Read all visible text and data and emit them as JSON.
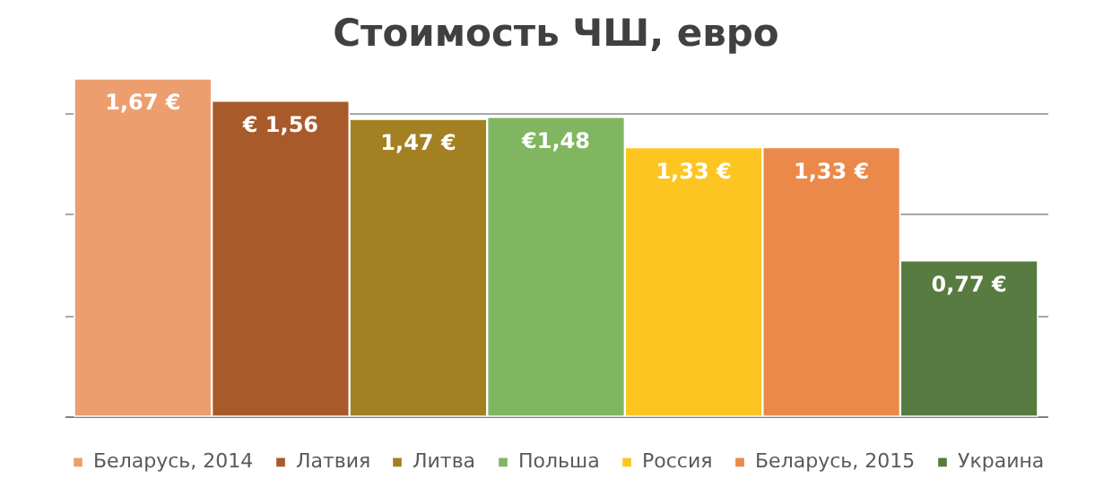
{
  "chart_data": {
    "type": "bar",
    "title": "Стоимость ЧШ, евро",
    "categories": [
      null
    ],
    "series": [
      {
        "name": "Беларусь, 2014",
        "color": "#ed9e6f",
        "values": [
          1.67
        ],
        "value_labels": [
          "1,67 €"
        ]
      },
      {
        "name": "Латвия",
        "color": "#a85a2a",
        "values": [
          1.56
        ],
        "value_labels": [
          "€ 1,56"
        ]
      },
      {
        "name": "Литва",
        "color": "#a38122",
        "values": [
          1.47
        ],
        "value_labels": [
          "1,47 €"
        ]
      },
      {
        "name": "Польша",
        "color": "#80b660",
        "values": [
          1.48
        ],
        "value_labels": [
          "€1,48"
        ]
      },
      {
        "name": "Россия",
        "color": "#fdc521",
        "values": [
          1.33
        ],
        "value_labels": [
          "1,33 €"
        ]
      },
      {
        "name": "Беларусь, 2015",
        "color": "#ea894a",
        "values": [
          1.33
        ],
        "value_labels": [
          "1,33 €"
        ]
      },
      {
        "name": "Украина",
        "color": "#577b40",
        "values": [
          0.77
        ],
        "value_labels": [
          "0,77 €"
        ]
      }
    ],
    "grid": "y",
    "legend": "bottom",
    "tick_labels": false
  }
}
